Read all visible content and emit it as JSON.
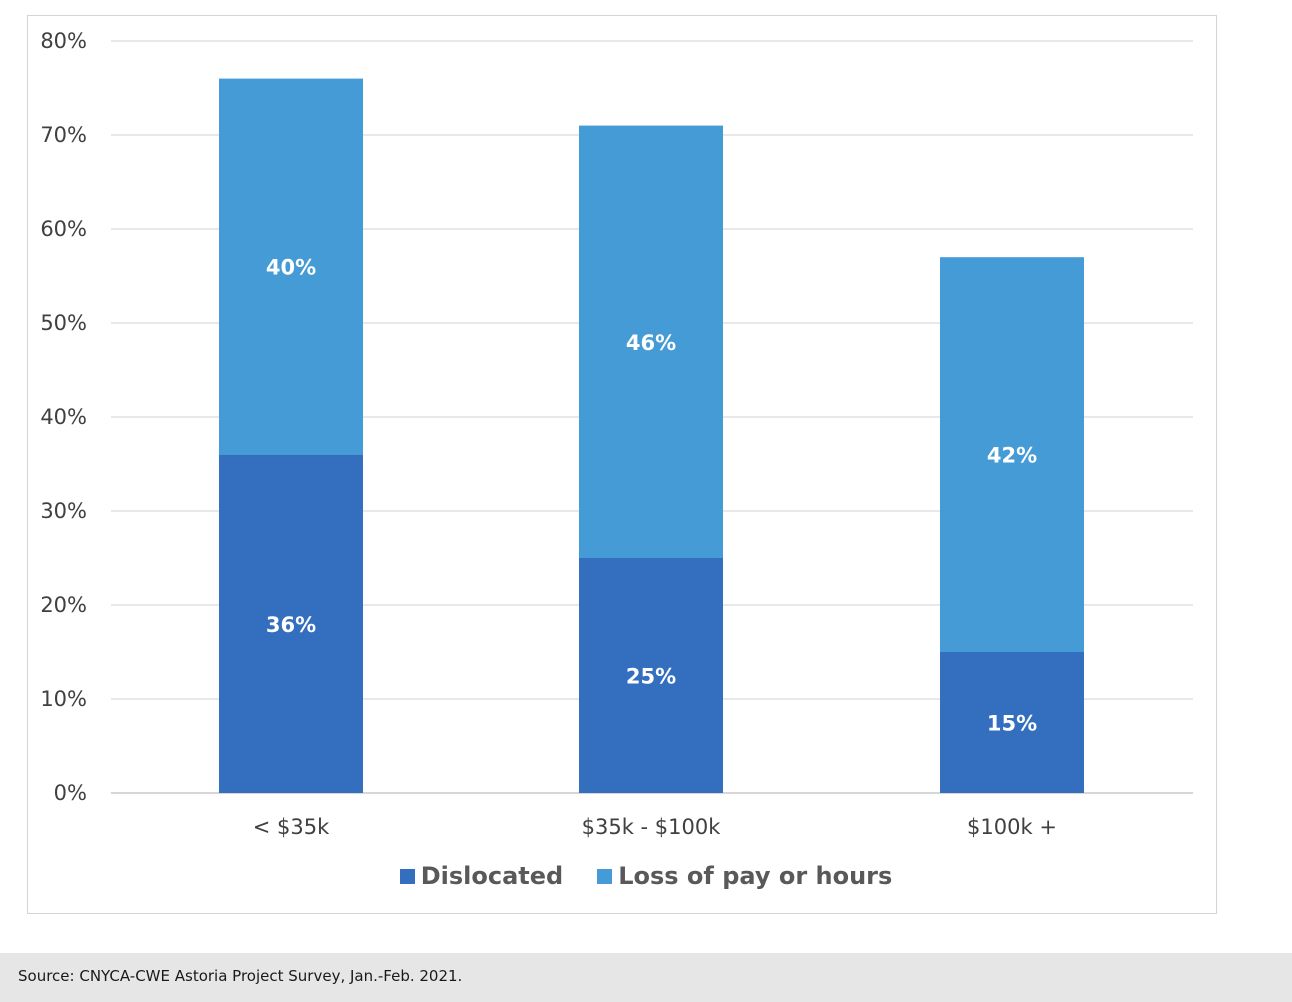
{
  "chart_data": {
    "type": "bar",
    "stacked": true,
    "categories": [
      "< $35k",
      "$35k - $100k",
      "$100k +"
    ],
    "series": [
      {
        "name": "Dislocated",
        "values": [
          36,
          25,
          15
        ],
        "labels": [
          "36%",
          "25%",
          "15%"
        ],
        "color": "#336ebf"
      },
      {
        "name": "Loss of pay or hours",
        "values": [
          40,
          46,
          42
        ],
        "labels": [
          "40%",
          "46%",
          "42%"
        ],
        "color": "#459bd5"
      }
    ],
    "ylim": [
      0,
      80
    ],
    "yticks": [
      0,
      10,
      20,
      30,
      40,
      50,
      60,
      70,
      80
    ],
    "ytick_labels": [
      "0%",
      "10%",
      "20%",
      "30%",
      "40%",
      "50%",
      "60%",
      "70%",
      "80%"
    ],
    "grid": true,
    "legend": "bottom",
    "title": "",
    "xlabel": "",
    "ylabel": ""
  },
  "source": "Source: CNYCA-CWE Astoria Project Survey, Jan.-Feb. 2021."
}
